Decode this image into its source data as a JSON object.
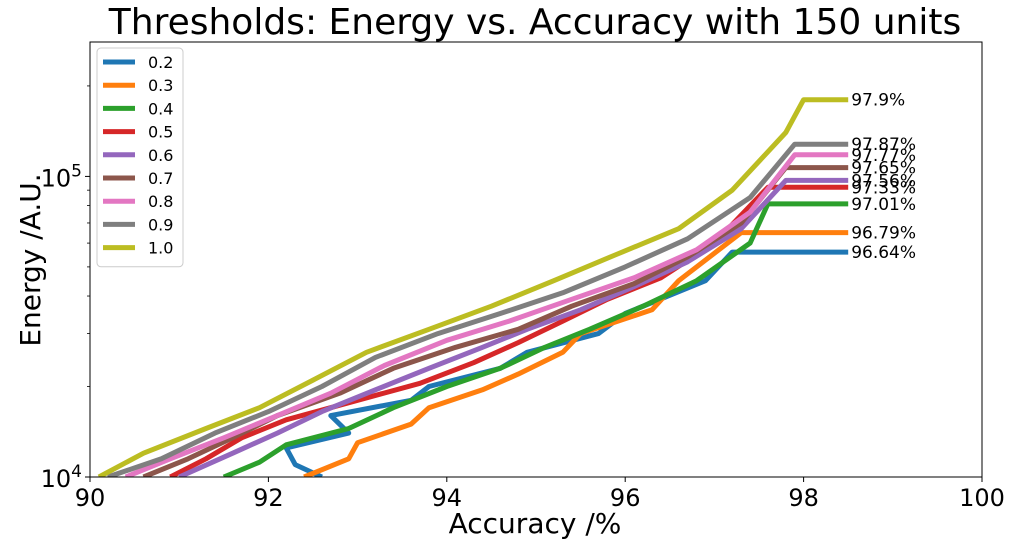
{
  "chart_data": {
    "type": "line",
    "title": "Thresholds: Energy vs. Accuracy with 150 units",
    "xlabel": "Accuracy /%",
    "ylabel": "Energy /A.U.",
    "xlim": [
      90,
      100
    ],
    "ylim": [
      10000,
      280000
    ],
    "yscale": "log",
    "x_ticks": [
      {
        "value": 90,
        "label": "90"
      },
      {
        "value": 92,
        "label": "92"
      },
      {
        "value": 94,
        "label": "94"
      },
      {
        "value": 96,
        "label": "96"
      },
      {
        "value": 98,
        "label": "98"
      },
      {
        "value": 100,
        "label": "100"
      }
    ],
    "y_major_ticks": [
      {
        "value": 10000,
        "base": "10",
        "exp": "4"
      },
      {
        "value": 100000,
        "base": "10",
        "exp": "5"
      }
    ],
    "grid": false,
    "legend_position": "top-left",
    "series": [
      {
        "name": "0.2",
        "color": "#1f77b4",
        "final_label": "96.64%",
        "x": [
          92.6,
          92.3,
          92.2,
          92.9,
          92.7,
          93.6,
          93.8,
          94.6,
          94.9,
          95.7,
          96.0,
          96.9,
          97.2,
          98.5
        ],
        "y": [
          10000,
          11000,
          12500,
          14000,
          16000,
          18000,
          20000,
          23000,
          26000,
          30000,
          35000,
          45000,
          56000,
          56000
        ]
      },
      {
        "name": "0.3",
        "color": "#ff7f0e",
        "final_label": "96.79%",
        "x": [
          92.4,
          92.9,
          93.0,
          93.6,
          93.8,
          94.4,
          94.8,
          95.3,
          95.5,
          96.3,
          96.6,
          97.3,
          98.5
        ],
        "y": [
          10000,
          11500,
          13000,
          15000,
          17000,
          19500,
          22000,
          26000,
          30000,
          36000,
          45000,
          65000,
          65000
        ]
      },
      {
        "name": "0.4",
        "color": "#2ca02c",
        "final_label": "97.01%",
        "x": [
          91.5,
          91.9,
          92.2,
          92.9,
          93.4,
          94.0,
          94.6,
          95.1,
          95.6,
          96.2,
          96.8,
          97.4,
          97.6,
          98.5
        ],
        "y": [
          10000,
          11200,
          12800,
          14500,
          17000,
          20000,
          23000,
          27000,
          31000,
          37000,
          45000,
          60000,
          81000,
          81000
        ]
      },
      {
        "name": "0.5",
        "color": "#d62728",
        "final_label": "97.33%",
        "x": [
          90.9,
          91.3,
          91.7,
          92.2,
          93.0,
          93.7,
          94.3,
          94.8,
          95.3,
          95.8,
          96.4,
          97.0,
          97.6,
          98.5
        ],
        "y": [
          10000,
          11500,
          13500,
          15500,
          18000,
          20500,
          24000,
          28000,
          33000,
          39000,
          46000,
          60000,
          92000,
          92000
        ]
      },
      {
        "name": "0.6",
        "color": "#9467bd",
        "final_label": "97.56%",
        "x": [
          91.0,
          91.6,
          92.1,
          92.6,
          93.2,
          93.8,
          94.4,
          94.9,
          95.5,
          96.1,
          96.7,
          97.3,
          97.8,
          98.5
        ],
        "y": [
          10000,
          12000,
          14000,
          16500,
          19500,
          23000,
          27000,
          31000,
          36000,
          43000,
          52000,
          67000,
          97000,
          97000
        ]
      },
      {
        "name": "0.7",
        "color": "#8c564b",
        "final_label": "97.65%",
        "x": [
          90.6,
          91.1,
          91.6,
          92.1,
          92.8,
          93.4,
          94.1,
          94.8,
          95.4,
          96.1,
          96.7,
          97.3,
          97.8,
          98.5
        ],
        "y": [
          10000,
          11500,
          13500,
          16000,
          19000,
          23000,
          27000,
          31000,
          37000,
          44000,
          54000,
          70000,
          107000,
          107000
        ]
      },
      {
        "name": "0.8",
        "color": "#e377c2",
        "final_label": "97.77%",
        "x": [
          90.4,
          90.9,
          91.5,
          92.1,
          92.7,
          93.3,
          94.0,
          94.7,
          95.4,
          96.1,
          96.8,
          97.4,
          97.9,
          98.5
        ],
        "y": [
          10000,
          11500,
          13500,
          16000,
          19000,
          23500,
          28500,
          33000,
          39000,
          46000,
          57000,
          76000,
          118000,
          118000
        ]
      },
      {
        "name": "0.9",
        "color": "#7f7f7f",
        "final_label": "97.87%",
        "x": [
          90.2,
          90.8,
          91.4,
          92.0,
          92.6,
          93.2,
          93.9,
          94.6,
          95.3,
          96.0,
          96.7,
          97.4,
          97.9,
          98.5
        ],
        "y": [
          10000,
          11500,
          14000,
          16500,
          20000,
          25000,
          30000,
          35000,
          41000,
          50000,
          62000,
          85000,
          128000,
          128000
        ]
      },
      {
        "name": "1.0",
        "color": "#bcbd22",
        "final_label": "97.9%",
        "x": [
          90.1,
          90.6,
          91.3,
          91.9,
          92.5,
          93.1,
          93.8,
          94.5,
          95.2,
          95.9,
          96.6,
          97.2,
          97.8,
          98.0,
          98.5
        ],
        "y": [
          10000,
          12000,
          14500,
          17000,
          21000,
          26000,
          31000,
          37000,
          45000,
          55000,
          67000,
          90000,
          140000,
          180000,
          180000
        ]
      }
    ]
  }
}
